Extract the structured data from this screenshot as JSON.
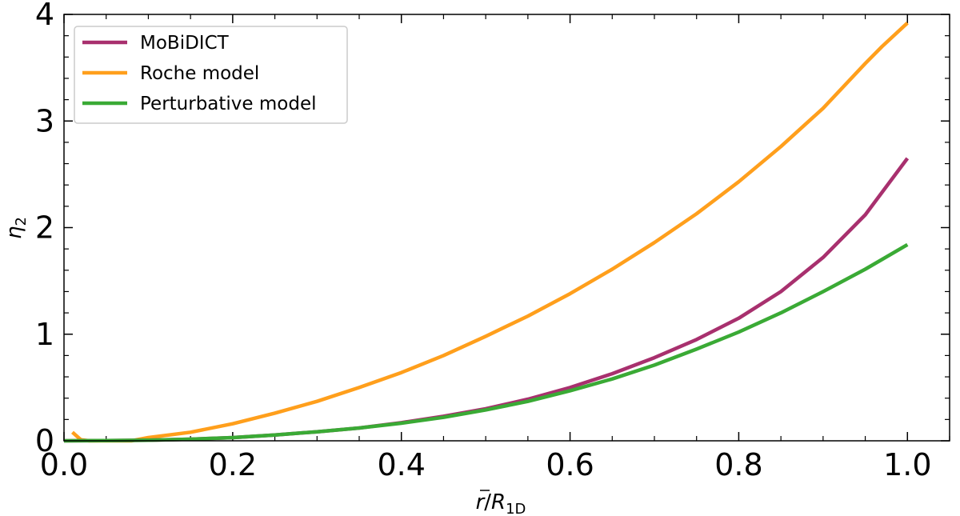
{
  "chart_data": {
    "type": "line",
    "xlabel": "r̄/R1D",
    "ylabel": "η2",
    "xlim": [
      0.0,
      1.05
    ],
    "ylim": [
      0,
      4
    ],
    "x_ticks": [
      "0.0",
      "0.2",
      "0.4",
      "0.6",
      "0.8",
      "1.0"
    ],
    "y_ticks": [
      "0",
      "1",
      "2",
      "3",
      "4"
    ],
    "grid": false,
    "legend_position": "top-left",
    "series": [
      {
        "name": "MoBiDICT",
        "color": "#a8306e",
        "x": [
          0.0,
          0.05,
          0.1,
          0.15,
          0.2,
          0.25,
          0.3,
          0.35,
          0.4,
          0.45,
          0.5,
          0.55,
          0.6,
          0.65,
          0.7,
          0.75,
          0.8,
          0.85,
          0.9,
          0.95,
          1.0
        ],
        "y": [
          0.0,
          0.002,
          0.006,
          0.015,
          0.03,
          0.055,
          0.085,
          0.12,
          0.17,
          0.23,
          0.3,
          0.39,
          0.5,
          0.63,
          0.78,
          0.95,
          1.15,
          1.4,
          1.72,
          2.12,
          2.65
        ]
      },
      {
        "name": "Roche model",
        "color": "#ff9f1c",
        "x": [
          0.01,
          0.02,
          0.03,
          0.05,
          0.08,
          0.1,
          0.15,
          0.2,
          0.25,
          0.3,
          0.35,
          0.4,
          0.45,
          0.5,
          0.55,
          0.6,
          0.65,
          0.7,
          0.75,
          0.8,
          0.85,
          0.9,
          0.95,
          0.97,
          1.0
        ],
        "y": [
          0.08,
          0.01,
          0.0,
          0.0,
          0.0,
          0.03,
          0.08,
          0.16,
          0.26,
          0.37,
          0.5,
          0.64,
          0.8,
          0.98,
          1.17,
          1.38,
          1.61,
          1.86,
          2.13,
          2.43,
          2.76,
          3.12,
          3.54,
          3.7,
          3.92
        ]
      },
      {
        "name": "Perturbative model",
        "color": "#3aaa35",
        "x": [
          0.0,
          0.05,
          0.1,
          0.15,
          0.2,
          0.25,
          0.3,
          0.35,
          0.4,
          0.45,
          0.5,
          0.55,
          0.6,
          0.65,
          0.7,
          0.75,
          0.8,
          0.85,
          0.9,
          0.95,
          1.0
        ],
        "y": [
          0.0,
          0.002,
          0.006,
          0.015,
          0.03,
          0.055,
          0.085,
          0.12,
          0.165,
          0.22,
          0.29,
          0.37,
          0.47,
          0.58,
          0.71,
          0.86,
          1.02,
          1.2,
          1.4,
          1.61,
          1.84
        ]
      }
    ]
  }
}
